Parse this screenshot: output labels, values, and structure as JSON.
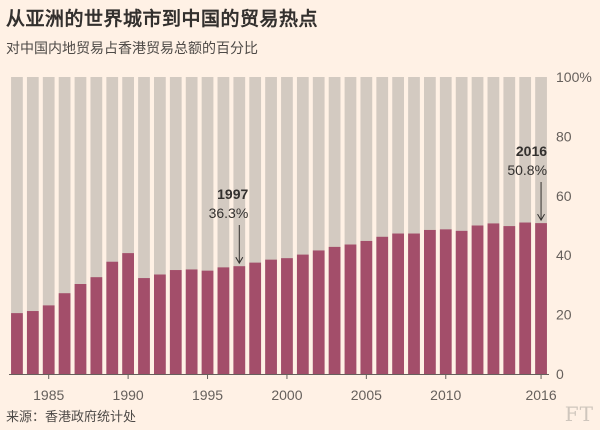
{
  "title": "从亚洲的世界城市到中国的贸易热点",
  "subtitle": "对中国内地贸易占香港贸易总额的百分比",
  "source": "来源：香港政府统计处",
  "logo": "FT",
  "colors": {
    "background": "#fff1e5",
    "bar": "#a34e6a",
    "track": "#d3cac1",
    "axis": "#66605c"
  },
  "chart_data": {
    "type": "bar",
    "x": [
      1983,
      1984,
      1985,
      1986,
      1987,
      1988,
      1989,
      1990,
      1991,
      1992,
      1993,
      1994,
      1995,
      1996,
      1997,
      1998,
      1999,
      2000,
      2001,
      2002,
      2003,
      2004,
      2005,
      2006,
      2007,
      2008,
      2009,
      2010,
      2011,
      2012,
      2013,
      2014,
      2015,
      2016
    ],
    "values": [
      20.5,
      21.2,
      23.1,
      27.2,
      30.3,
      32.6,
      37.8,
      40.7,
      32.3,
      33.5,
      35.0,
      35.2,
      34.8,
      35.9,
      36.3,
      37.5,
      38.5,
      39.0,
      40.2,
      41.6,
      42.8,
      43.6,
      44.8,
      46.2,
      47.3,
      47.3,
      48.5,
      48.7,
      48.2,
      50.0,
      50.7,
      49.8,
      51.0,
      50.8
    ],
    "ylim": [
      0,
      100
    ],
    "yticks": [
      "0",
      "20",
      "40",
      "60",
      "80",
      "100%"
    ],
    "xtick_labels": [
      "1985",
      "1990",
      "1995",
      "2000",
      "2005",
      "2010",
      "2016"
    ],
    "annotations": [
      {
        "year": "1997",
        "label": "36.3%"
      },
      {
        "year": "2016",
        "label": "50.8%"
      }
    ]
  }
}
